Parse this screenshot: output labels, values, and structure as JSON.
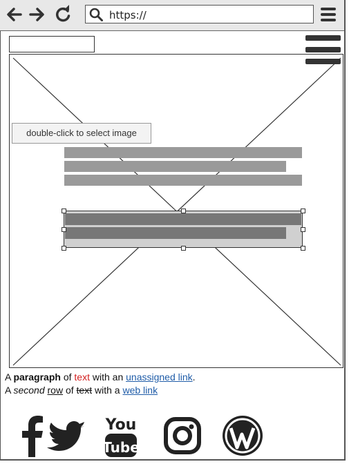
{
  "browser": {
    "url": "https://",
    "back_icon": "back-arrow-icon",
    "forward_icon": "forward-arrow-icon",
    "reload_icon": "reload-icon",
    "search_icon": "search-icon",
    "menu_icon": "menu-icon"
  },
  "image_placeholder": {
    "tooltip": "double-click to select image"
  },
  "paragraph": {
    "line1": {
      "p1": "A ",
      "bold": "paragraph",
      "p2": " of ",
      "red": "text",
      "p3": " with an ",
      "link": "unassigned link",
      "p4": "."
    },
    "line2": {
      "p1": "A ",
      "italic": "second",
      "p2": " ",
      "underline": "row",
      "p3": " of ",
      "strike": "text",
      "p4": " with a ",
      "link": "web link"
    }
  },
  "social": [
    "facebook-icon",
    "twitter-icon",
    "youtube-icon",
    "instagram-icon",
    "wordpress-icon"
  ],
  "colors": {
    "bar_gray": "#9a9a9a",
    "link": "#1f5ca8",
    "red_text": "#d32020"
  }
}
